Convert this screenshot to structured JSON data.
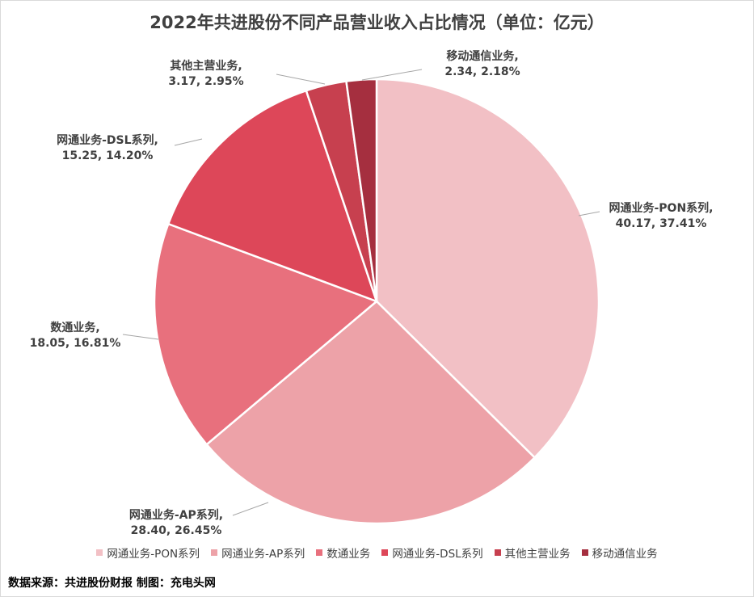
{
  "chart_data": {
    "type": "pie",
    "title": "2022年共进股份不同产品营业收入占比情况（单位：亿元）",
    "slices": [
      {
        "name": "网通业务-PON系列",
        "value": 40.17,
        "percent": "37.41%",
        "color": "#f2c0c5",
        "label_line1": "网通业务-PON系列,",
        "label_line2": "40.17, 37.41%"
      },
      {
        "name": "网通业务-AP系列",
        "value": 28.4,
        "percent": "26.45%",
        "color": "#eda2a8",
        "label_line1": "网通业务-AP系列,",
        "label_line2": "28.40, 26.45%"
      },
      {
        "name": "数通业务",
        "value": 18.05,
        "percent": "16.81%",
        "color": "#e8707d",
        "label_line1": "数通业务,",
        "label_line2": "18.05, 16.81%"
      },
      {
        "name": "网通业务-DSL系列",
        "value": 15.25,
        "percent": "14.20%",
        "color": "#dd4759",
        "label_line1": "网通业务-DSL系列,",
        "label_line2": "15.25, 14.20%"
      },
      {
        "name": "其他主营业务",
        "value": 3.17,
        "percent": "2.95%",
        "color": "#c7404f",
        "label_line1": "其他主营业务,",
        "label_line2": "3.17, 2.95%"
      },
      {
        "name": "移动通信业务",
        "value": 2.34,
        "percent": "2.18%",
        "color": "#a52f3f",
        "label_line1": "移动通信业务,",
        "label_line2": "2.34, 2.18%"
      }
    ],
    "legend_position": "bottom"
  },
  "source_text": "数据来源：共进股份财报  制图：充电头网"
}
